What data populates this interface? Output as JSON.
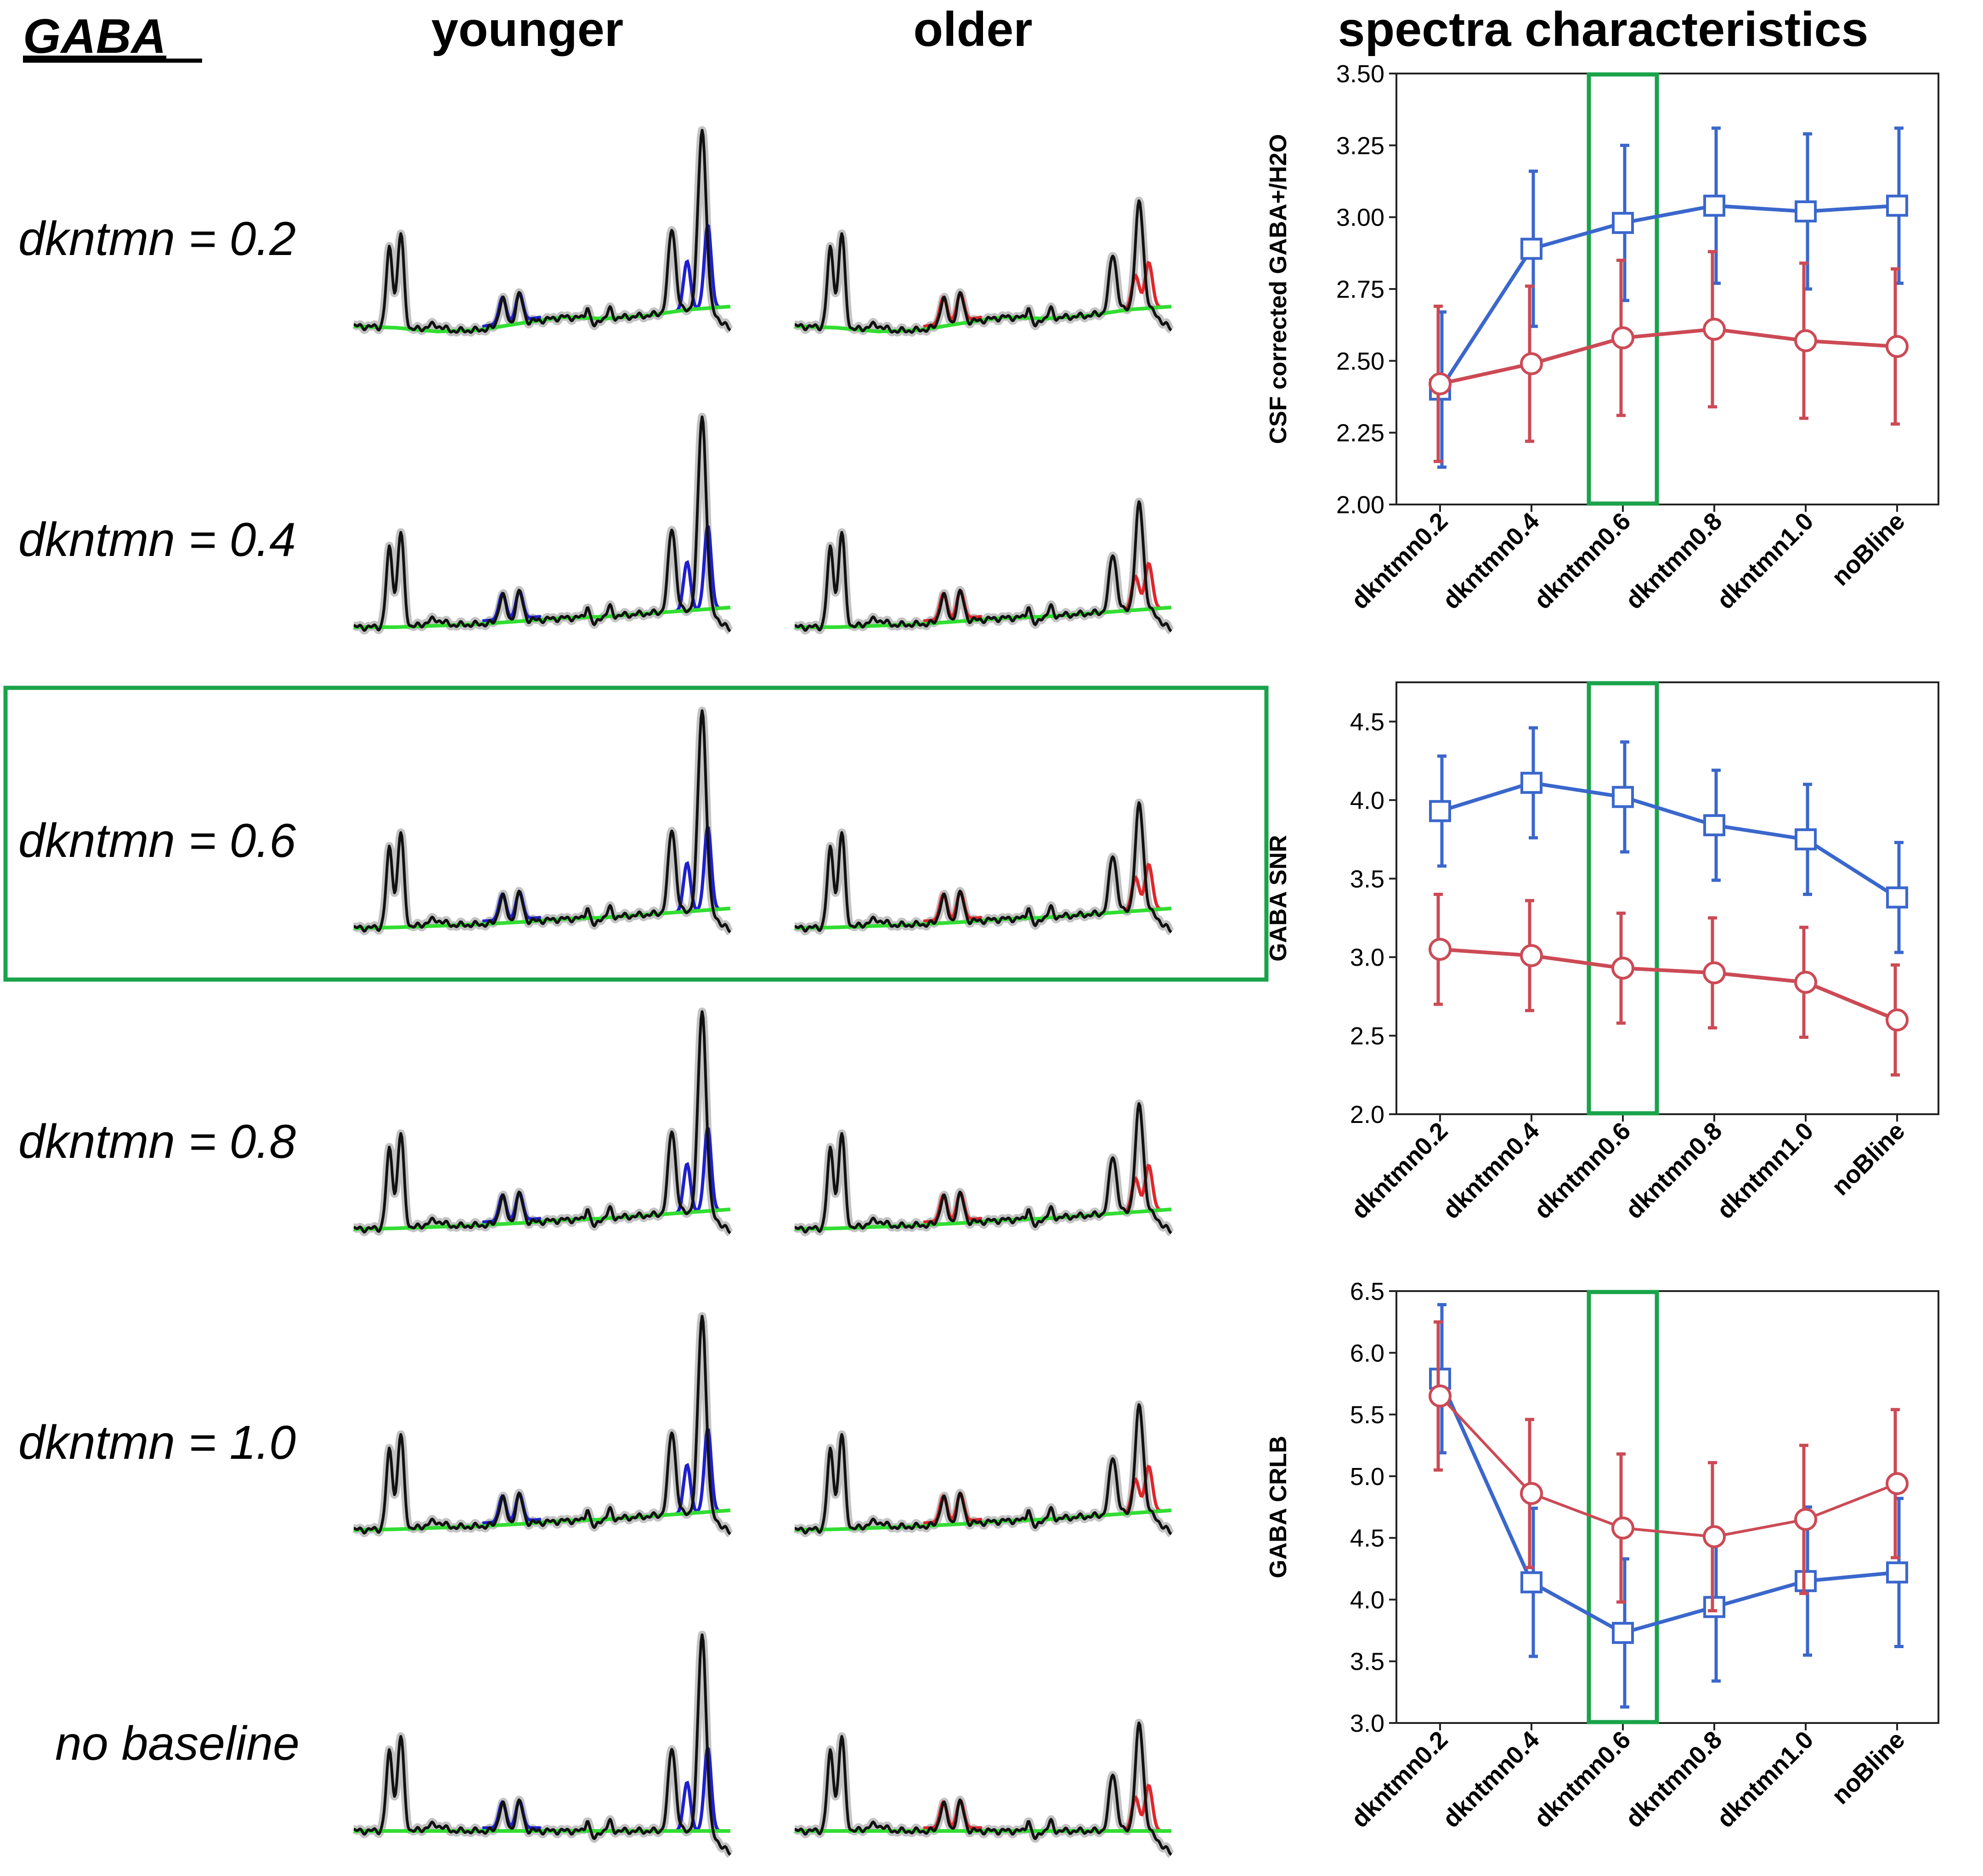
{
  "figure": {
    "metabolite_label": "GABA",
    "col_younger": "younger",
    "col_older": "older",
    "col_right": "spectra characteristics",
    "highlight_color": "#1aa34a",
    "younger_color": "#1f1fcf",
    "older_color": "#e0262b",
    "baseline_color": "#33dd33"
  },
  "rows": [
    {
      "label": "dkntmn = 0.2",
      "baseline_curve": [
        0.0,
        -0.01,
        -0.035,
        -0.025,
        0.02,
        0.06,
        0.05,
        0.07,
        0.11,
        0.13
      ]
    },
    {
      "label": "dkntmn = 0.4",
      "baseline_curve": [
        0.0,
        0.0,
        0.01,
        0.02,
        0.04,
        0.06,
        0.07,
        0.09,
        0.11,
        0.13
      ]
    },
    {
      "label": "dkntmn = 0.6",
      "baseline_curve": [
        0.0,
        0.005,
        0.015,
        0.025,
        0.04,
        0.06,
        0.07,
        0.09,
        0.11,
        0.13
      ]
    },
    {
      "label": "dkntmn = 0.8",
      "baseline_curve": [
        0.0,
        0.005,
        0.015,
        0.025,
        0.04,
        0.06,
        0.07,
        0.09,
        0.11,
        0.13
      ]
    },
    {
      "label": "dkntmn = 1.0",
      "baseline_curve": [
        0.0,
        0.005,
        0.015,
        0.025,
        0.04,
        0.06,
        0.07,
        0.09,
        0.11,
        0.13
      ]
    },
    {
      "label": "no baseline",
      "baseline_curve": [
        0,
        0,
        0,
        0,
        0,
        0,
        0,
        0,
        0,
        0
      ]
    }
  ],
  "chart_data": [
    {
      "type": "line",
      "title": "",
      "xlabel": "",
      "ylabel": "CSF corrected GABA+/H2O",
      "categories": [
        "dkntmn0.2",
        "dkntmn0.4",
        "dkntmn0.6",
        "dkntmn0.8",
        "dkntmn1.0",
        "noBline"
      ],
      "ylim": [
        2.0,
        3.5
      ],
      "yticks": [
        "2.00",
        "2.25",
        "2.50",
        "2.75",
        "3.00",
        "3.25",
        "3.50"
      ],
      "ytick_values": [
        2.0,
        2.25,
        2.5,
        2.75,
        3.0,
        3.25,
        3.5
      ],
      "highlight_category": "dkntmn0.6",
      "series": [
        {
          "name": "younger",
          "marker": "square",
          "color": "#3a67cc",
          "values": [
            2.4,
            2.89,
            2.98,
            3.04,
            3.02,
            3.04
          ],
          "err": [
            0.27,
            0.27,
            0.27,
            0.27,
            0.27,
            0.27
          ]
        },
        {
          "name": "older",
          "marker": "circle",
          "color": "#cc4a55",
          "values": [
            2.42,
            2.49,
            2.58,
            2.61,
            2.57,
            2.55
          ],
          "err": [
            0.27,
            0.27,
            0.27,
            0.27,
            0.27,
            0.27
          ]
        }
      ]
    },
    {
      "type": "line",
      "title": "",
      "xlabel": "",
      "ylabel": "GABA SNR",
      "categories": [
        "dkntmn0.2",
        "dkntmn0.4",
        "dkntmn0.6",
        "dkntmn0.8",
        "dkntmn1.0",
        "noBline"
      ],
      "ylim": [
        2.0,
        4.75
      ],
      "yticks": [
        "2.0",
        "2.5",
        "3.0",
        "3.5",
        "4.0",
        "4.5"
      ],
      "ytick_values": [
        2.0,
        2.5,
        3.0,
        3.5,
        4.0,
        4.5
      ],
      "highlight_category": "dkntmn0.6",
      "series": [
        {
          "name": "younger",
          "marker": "square",
          "color": "#3a67cc",
          "values": [
            3.93,
            4.11,
            4.02,
            3.84,
            3.75,
            3.38
          ],
          "err": [
            0.35,
            0.35,
            0.35,
            0.35,
            0.35,
            0.35
          ]
        },
        {
          "name": "older",
          "marker": "circle",
          "color": "#cc4a55",
          "values": [
            3.05,
            3.01,
            2.93,
            2.9,
            2.84,
            2.6
          ],
          "err": [
            0.35,
            0.35,
            0.35,
            0.35,
            0.35,
            0.35
          ]
        }
      ]
    },
    {
      "type": "line",
      "title": "",
      "xlabel": "",
      "ylabel": "GABA CRLB",
      "categories": [
        "dkntmn0.2",
        "dkntmn0.4",
        "dkntmn0.6",
        "dkntmn0.8",
        "dkntmn1.0",
        "noBline"
      ],
      "ylim": [
        3.0,
        6.5
      ],
      "yticks": [
        "3.0",
        "3.5",
        "4.0",
        "4.5",
        "5.0",
        "5.5",
        "6.0",
        "6.5"
      ],
      "ytick_values": [
        3.0,
        3.5,
        4.0,
        4.5,
        5.0,
        5.5,
        6.0,
        6.5
      ],
      "highlight_category": "dkntmn0.6",
      "series": [
        {
          "name": "younger",
          "marker": "square",
          "color": "#3a67cc",
          "values": [
            5.79,
            4.14,
            3.73,
            3.94,
            4.15,
            4.22
          ],
          "err": [
            0.6,
            0.6,
            0.6,
            0.6,
            0.6,
            0.6
          ]
        },
        {
          "name": "older",
          "marker": "circle",
          "color": "#cc4a55",
          "values": [
            5.65,
            4.86,
            4.58,
            4.51,
            4.65,
            4.94
          ],
          "err": [
            0.6,
            0.6,
            0.6,
            0.6,
            0.6,
            0.6
          ]
        }
      ]
    }
  ]
}
